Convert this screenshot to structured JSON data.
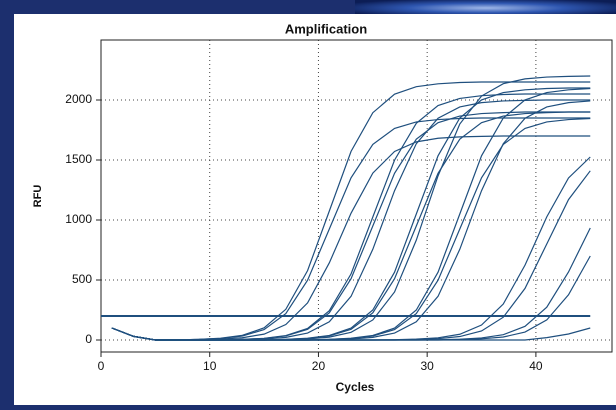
{
  "chart_data": {
    "type": "line",
    "title": "Amplification",
    "x_label": "Cycles",
    "y_label": "RFU",
    "color": "#1f4f7e",
    "threshold": 200,
    "threshold_color": "#1f4f7e",
    "grid": true,
    "xlim": [
      0,
      47
    ],
    "ylim": [
      -100,
      2500
    ],
    "xticks": [
      0,
      10,
      20,
      30,
      40
    ],
    "yticks": [
      0,
      500,
      1000,
      1500,
      2000
    ],
    "x": [
      1,
      3,
      5,
      7,
      9,
      11,
      13,
      15,
      17,
      19,
      21,
      23,
      25,
      27,
      29,
      31,
      33,
      35,
      37,
      39,
      41,
      43,
      45
    ],
    "series": [
      {
        "values": [
          100,
          30,
          0,
          0,
          5,
          15,
          39,
          101,
          256,
          578,
          1075,
          1572,
          1894,
          2049,
          2111,
          2135,
          2146,
          2150,
          2150,
          2150,
          2150,
          2150,
          2150
        ]
      },
      {
        "values": [
          100,
          30,
          0,
          0,
          5,
          13,
          33,
          87,
          220,
          498,
          925,
          1352,
          1630,
          1763,
          1817,
          1837,
          1846,
          1850,
          1850,
          1850,
          1850,
          1850,
          1850
        ]
      },
      {
        "values": [
          100,
          30,
          0,
          0,
          3,
          7,
          19,
          49,
          129,
          309,
          643,
          1057,
          1391,
          1571,
          1651,
          1681,
          1693,
          1697,
          1700,
          1700,
          1700,
          1700,
          1700
        ]
      },
      {
        "values": [
          100,
          30,
          0,
          0,
          0,
          0,
          5,
          14,
          37,
          96,
          244,
          551,
          1025,
          1499,
          1806,
          1954,
          2013,
          2036,
          2046,
          2050,
          2050,
          2050,
          2050
        ]
      },
      {
        "values": [
          100,
          30,
          0,
          0,
          0,
          0,
          5,
          13,
          34,
          89,
          226,
          511,
          950,
          1389,
          1674,
          1811,
          1866,
          1887,
          1895,
          1900,
          1900,
          1900,
          1900
        ]
      },
      {
        "values": [
          100,
          30,
          0,
          0,
          0,
          0,
          3,
          8,
          22,
          58,
          152,
          364,
          756,
          1244,
          1636,
          1848,
          1942,
          1978,
          1992,
          1997,
          2000,
          2000,
          2000
        ]
      },
      {
        "values": [
          100,
          30,
          0,
          0,
          0,
          0,
          0,
          0,
          5,
          15,
          38,
          99,
          250,
          565,
          1050,
          1535,
          1850,
          2001,
          2062,
          2085,
          2096,
          2100,
          2100
        ]
      },
      {
        "values": [
          100,
          30,
          0,
          0,
          0,
          0,
          0,
          0,
          5,
          13,
          34,
          89,
          226,
          511,
          950,
          1389,
          1674,
          1811,
          1866,
          1887,
          1895,
          1900,
          1900
        ]
      },
      {
        "values": [
          100,
          30,
          0,
          0,
          0,
          0,
          0,
          0,
          3,
          9,
          24,
          64,
          167,
          400,
          832,
          1368,
          1800,
          2033,
          2136,
          2176,
          2191,
          2197,
          2200
        ]
      },
      {
        "values": [
          100,
          30,
          0,
          0,
          0,
          0,
          0,
          0,
          0,
          0,
          5,
          15,
          38,
          99,
          250,
          565,
          1050,
          1535,
          1850,
          2001,
          2062,
          2085,
          2096
        ]
      },
      {
        "values": [
          100,
          30,
          0,
          0,
          0,
          0,
          0,
          0,
          0,
          0,
          5,
          13,
          33,
          87,
          220,
          498,
          925,
          1352,
          1630,
          1763,
          1817,
          1837,
          1846
        ]
      },
      {
        "values": [
          100,
          30,
          0,
          0,
          0,
          0,
          0,
          0,
          0,
          0,
          3,
          8,
          22,
          58,
          152,
          364,
          756,
          1244,
          1636,
          1848,
          1942,
          1978,
          1992
        ]
      },
      {
        "values": [
          100,
          30,
          0,
          0,
          0,
          0,
          0,
          0,
          0,
          0,
          0,
          0,
          0,
          2,
          7,
          18,
          48,
          125,
          300,
          624,
          1026,
          1350,
          1525
        ]
      },
      {
        "values": [
          100,
          30,
          0,
          0,
          0,
          0,
          0,
          0,
          0,
          0,
          0,
          0,
          0,
          0,
          4,
          11,
          29,
          75,
          190,
          430,
          800,
          1170,
          1410
        ]
      },
      {
        "values": [
          100,
          30,
          0,
          0,
          0,
          0,
          0,
          0,
          0,
          0,
          0,
          0,
          0,
          0,
          0,
          2,
          6,
          17,
          44,
          114,
          273,
          567,
          933
        ]
      },
      {
        "values": [
          100,
          30,
          0,
          0,
          0,
          0,
          0,
          0,
          0,
          0,
          0,
          0,
          0,
          0,
          0,
          0,
          4,
          10,
          25,
          66,
          167,
          377,
          700
        ]
      },
      {
        "values": [
          100,
          30,
          0,
          0,
          0,
          0,
          0,
          0,
          0,
          0,
          0,
          0,
          0,
          0,
          0,
          0,
          0,
          0,
          0,
          0,
          20,
          50,
          100
        ]
      }
    ]
  }
}
